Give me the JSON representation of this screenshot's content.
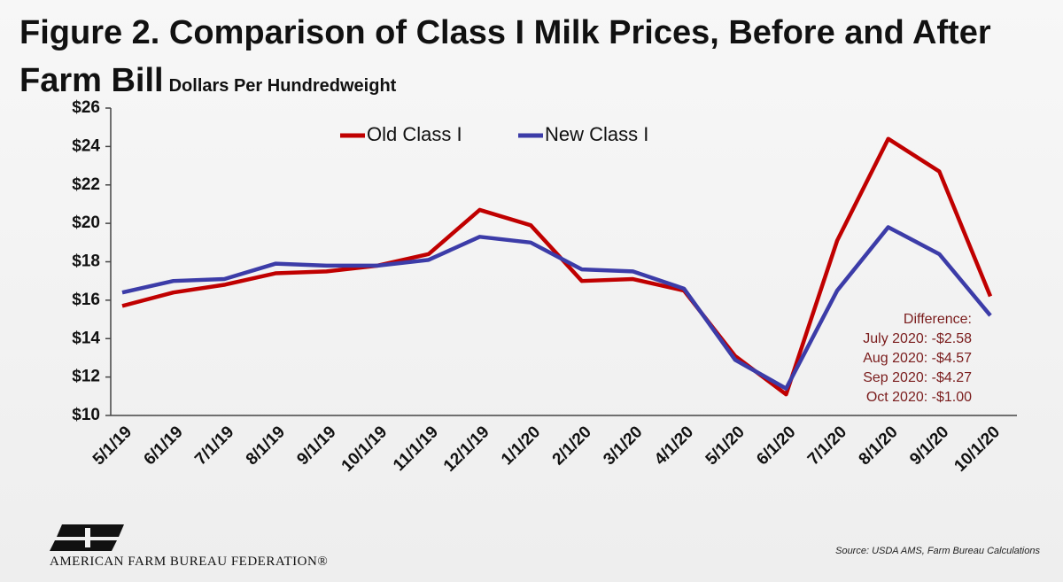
{
  "chart_data": {
    "type": "line",
    "title": "Figure 2. Comparison of Class I Milk Prices, Before and After Farm Bill",
    "subtitle": "Dollars Per Hundredweight",
    "categories": [
      "5/1/19",
      "6/1/19",
      "7/1/19",
      "8/1/19",
      "9/1/19",
      "10/1/19",
      "11/1/19",
      "12/1/19",
      "1/1/20",
      "2/1/20",
      "3/1/20",
      "4/1/20",
      "5/1/20",
      "6/1/20",
      "7/1/20",
      "8/1/20",
      "9/1/20",
      "10/1/20"
    ],
    "series": [
      {
        "name": "Old Class I",
        "color": "#c00000",
        "values": [
          15.7,
          16.4,
          16.8,
          17.4,
          17.5,
          17.8,
          18.4,
          20.7,
          19.9,
          17.0,
          17.1,
          16.5,
          13.1,
          11.1,
          19.1,
          24.4,
          22.7,
          16.2
        ]
      },
      {
        "name": "New Class I",
        "color": "#3c3ca8",
        "values": [
          16.4,
          17.0,
          17.1,
          17.9,
          17.8,
          17.8,
          18.1,
          19.3,
          19.0,
          17.6,
          17.5,
          16.6,
          12.9,
          11.4,
          16.5,
          19.8,
          18.4,
          15.2
        ]
      }
    ],
    "ylim": [
      10,
      26
    ],
    "yticks": [
      {
        "value": 10,
        "label": "$10"
      },
      {
        "value": 12,
        "label": "$12"
      },
      {
        "value": 14,
        "label": "$14"
      },
      {
        "value": 16,
        "label": "$16"
      },
      {
        "value": 18,
        "label": "$18"
      },
      {
        "value": 20,
        "label": "$20"
      },
      {
        "value": 22,
        "label": "$22"
      },
      {
        "value": 24,
        "label": "$24"
      },
      {
        "value": 26,
        "label": "$26"
      }
    ],
    "legend": "top",
    "annotations": [
      "Difference:",
      "July 2020: -$2.58",
      "Aug 2020: -$4.57",
      "Sep 2020: -$4.27",
      "Oct 2020: -$1.00"
    ],
    "source": "Source: USDA AMS, Farm Bureau Calculations",
    "organization": "AMERICAN FARM BUREAU FEDERATION®"
  }
}
